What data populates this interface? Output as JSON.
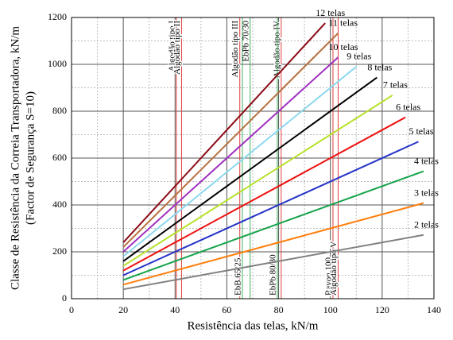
{
  "chart_data": {
    "type": "line",
    "xlabel": "Resistência das telas, kN/m",
    "ylabel": [
      "Classe de Resistência da Correia Transportadora, kN/m",
      "(Factor de Segurança S=10)"
    ],
    "xlim": [
      0,
      140
    ],
    "xticks": [
      0,
      20,
      40,
      60,
      80,
      100,
      120,
      140
    ],
    "ylim": [
      0,
      1200
    ],
    "yticks": [
      0,
      200,
      400,
      600,
      800,
      1000,
      1200
    ],
    "grid": true,
    "minor_grid": true,
    "series": [
      {
        "name": "2 telas",
        "color": "#808080",
        "x": [
          20,
          136
        ],
        "values": [
          40,
          272
        ]
      },
      {
        "name": "3 telas",
        "color": "#ff7f0e",
        "x": [
          20,
          136
        ],
        "values": [
          60,
          408
        ]
      },
      {
        "name": "4 telas",
        "color": "#16a34a",
        "x": [
          20,
          136
        ],
        "values": [
          80,
          544
        ]
      },
      {
        "name": "5 telas",
        "color": "#2634c8",
        "x": [
          20,
          134
        ],
        "values": [
          100,
          670
        ]
      },
      {
        "name": "6 telas",
        "color": "#ee1111",
        "x": [
          20,
          129
        ],
        "values": [
          120,
          774
        ]
      },
      {
        "name": "7 telas",
        "color": "#b6e12a",
        "x": [
          20,
          124
        ],
        "values": [
          140,
          868
        ]
      },
      {
        "name": "8 telas",
        "color": "#000000",
        "x": [
          20,
          118
        ],
        "values": [
          160,
          944
        ]
      },
      {
        "name": "9 telas",
        "color": "#8dd8ee",
        "x": [
          20,
          110
        ],
        "values": [
          180,
          990
        ]
      },
      {
        "name": "10 telas",
        "color": "#a030c0",
        "x": [
          20,
          103
        ],
        "values": [
          200,
          1030
        ]
      },
      {
        "name": "11 telas",
        "color": "#b87040",
        "x": [
          20,
          103
        ],
        "values": [
          220,
          1133
        ]
      },
      {
        "name": "12 telas",
        "color": "#8b0b16",
        "x": [
          20,
          98
        ],
        "values": [
          240,
          1176
        ]
      }
    ],
    "markers": [
      {
        "label": "Algodão tipo I",
        "x": 40.5,
        "side": "top",
        "color": "#e04040"
      },
      {
        "label": "Algodão tipo II",
        "x": 42.5,
        "side": "top",
        "color": "#e04040"
      },
      {
        "label": "Algodão tipo III",
        "x": 65,
        "side": "top",
        "color": "#e04040"
      },
      {
        "label": "EbPb 70/30",
        "x": 69,
        "side": "top",
        "color": "#40b060"
      },
      {
        "label": "Algodão tipo IV",
        "x": 81,
        "side": "top",
        "color": "#e04040"
      },
      {
        "label": "EbB 65/25",
        "x": 66,
        "side": "bottom",
        "color": "#40b060"
      },
      {
        "label": "EbPb 80/30",
        "x": 79.5,
        "side": "bottom",
        "color": "#40b060"
      },
      {
        "label": "Rayon 100",
        "x": 101,
        "side": "bottom",
        "color": "#e04040"
      },
      {
        "label": "Algodão tipo V",
        "x": 103,
        "side": "bottom",
        "color": "#e04040"
      }
    ]
  }
}
